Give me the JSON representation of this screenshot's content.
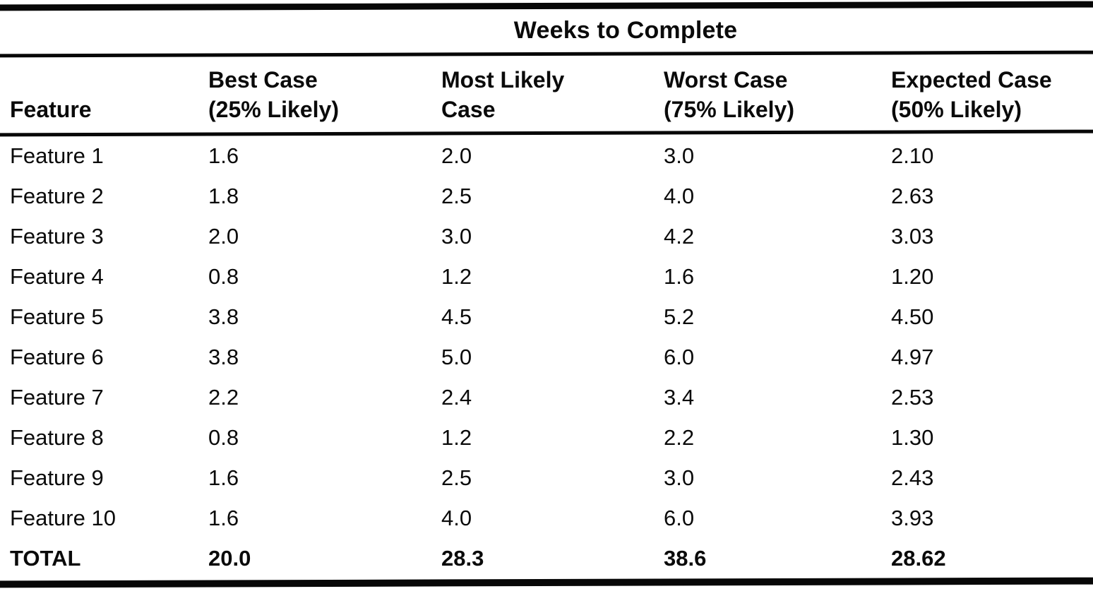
{
  "table": {
    "title": "Weeks to Complete",
    "columns": [
      {
        "label": "Feature",
        "lines": [
          "Feature"
        ]
      },
      {
        "label": "Best Case (25% Likely)",
        "lines": [
          "Best Case",
          "(25% Likely)"
        ]
      },
      {
        "label": "Most Likely Case",
        "lines": [
          "Most Likely",
          "Case"
        ]
      },
      {
        "label": "Worst Case (75% Likely)",
        "lines": [
          "Worst Case",
          "(75% Likely)"
        ]
      },
      {
        "label": "Expected Case (50% Likely)",
        "lines": [
          "Expected Case",
          "(50% Likely)"
        ]
      }
    ],
    "rows": [
      {
        "feature": "Feature 1",
        "best": "1.6",
        "most_likely": "2.0",
        "worst": "3.0",
        "expected": "2.10"
      },
      {
        "feature": "Feature 2",
        "best": "1.8",
        "most_likely": "2.5",
        "worst": "4.0",
        "expected": "2.63"
      },
      {
        "feature": "Feature 3",
        "best": "2.0",
        "most_likely": "3.0",
        "worst": "4.2",
        "expected": "3.03"
      },
      {
        "feature": "Feature 4",
        "best": "0.8",
        "most_likely": "1.2",
        "worst": "1.6",
        "expected": "1.20"
      },
      {
        "feature": "Feature 5",
        "best": "3.8",
        "most_likely": "4.5",
        "worst": "5.2",
        "expected": "4.50"
      },
      {
        "feature": "Feature 6",
        "best": "3.8",
        "most_likely": "5.0",
        "worst": "6.0",
        "expected": "4.97"
      },
      {
        "feature": "Feature 7",
        "best": "2.2",
        "most_likely": "2.4",
        "worst": "3.4",
        "expected": "2.53"
      },
      {
        "feature": "Feature 8",
        "best": "0.8",
        "most_likely": "1.2",
        "worst": "2.2",
        "expected": "1.30"
      },
      {
        "feature": "Feature 9",
        "best": "1.6",
        "most_likely": "2.5",
        "worst": "3.0",
        "expected": "2.43"
      },
      {
        "feature": "Feature 10",
        "best": "1.6",
        "most_likely": "4.0",
        "worst": "6.0",
        "expected": "3.93"
      }
    ],
    "total_row": {
      "feature": "TOTAL",
      "best": "20.0",
      "most_likely": "28.3",
      "worst": "38.6",
      "expected": "28.62"
    },
    "colors": {
      "ink": "#070707",
      "paper": "#ffffff"
    }
  }
}
